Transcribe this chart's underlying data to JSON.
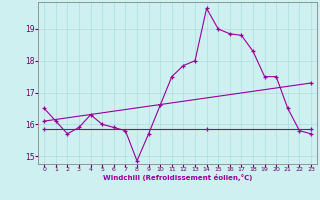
{
  "xlabel": "Windchill (Refroidissement éolien,°C)",
  "bg_color": "#cff0f0",
  "grid_color": "#aadddd",
  "line_color": "#990099",
  "xlim": [
    -0.5,
    23.5
  ],
  "ylim": [
    14.75,
    19.85
  ],
  "yticks": [
    15,
    16,
    17,
    18,
    19
  ],
  "xticks": [
    0,
    1,
    2,
    3,
    4,
    5,
    6,
    7,
    8,
    9,
    10,
    11,
    12,
    13,
    14,
    15,
    16,
    17,
    18,
    19,
    20,
    21,
    22,
    23
  ],
  "series1_x": [
    0,
    1,
    2,
    3,
    4,
    5,
    6,
    7,
    8,
    9,
    10,
    11,
    12,
    13,
    14,
    15,
    16,
    17,
    18,
    19,
    20,
    21,
    22,
    23
  ],
  "series1_y": [
    16.5,
    16.1,
    15.7,
    15.9,
    16.3,
    16.0,
    15.9,
    15.8,
    14.85,
    15.7,
    16.6,
    17.5,
    17.85,
    18.0,
    19.65,
    19.0,
    18.85,
    18.8,
    18.3,
    17.5,
    17.5,
    16.5,
    15.8,
    15.7
  ],
  "series2_x": [
    0,
    23
  ],
  "series2_y": [
    16.1,
    17.3
  ],
  "series3_x": [
    0,
    14,
    23
  ],
  "series3_y": [
    15.85,
    15.85,
    15.85
  ]
}
